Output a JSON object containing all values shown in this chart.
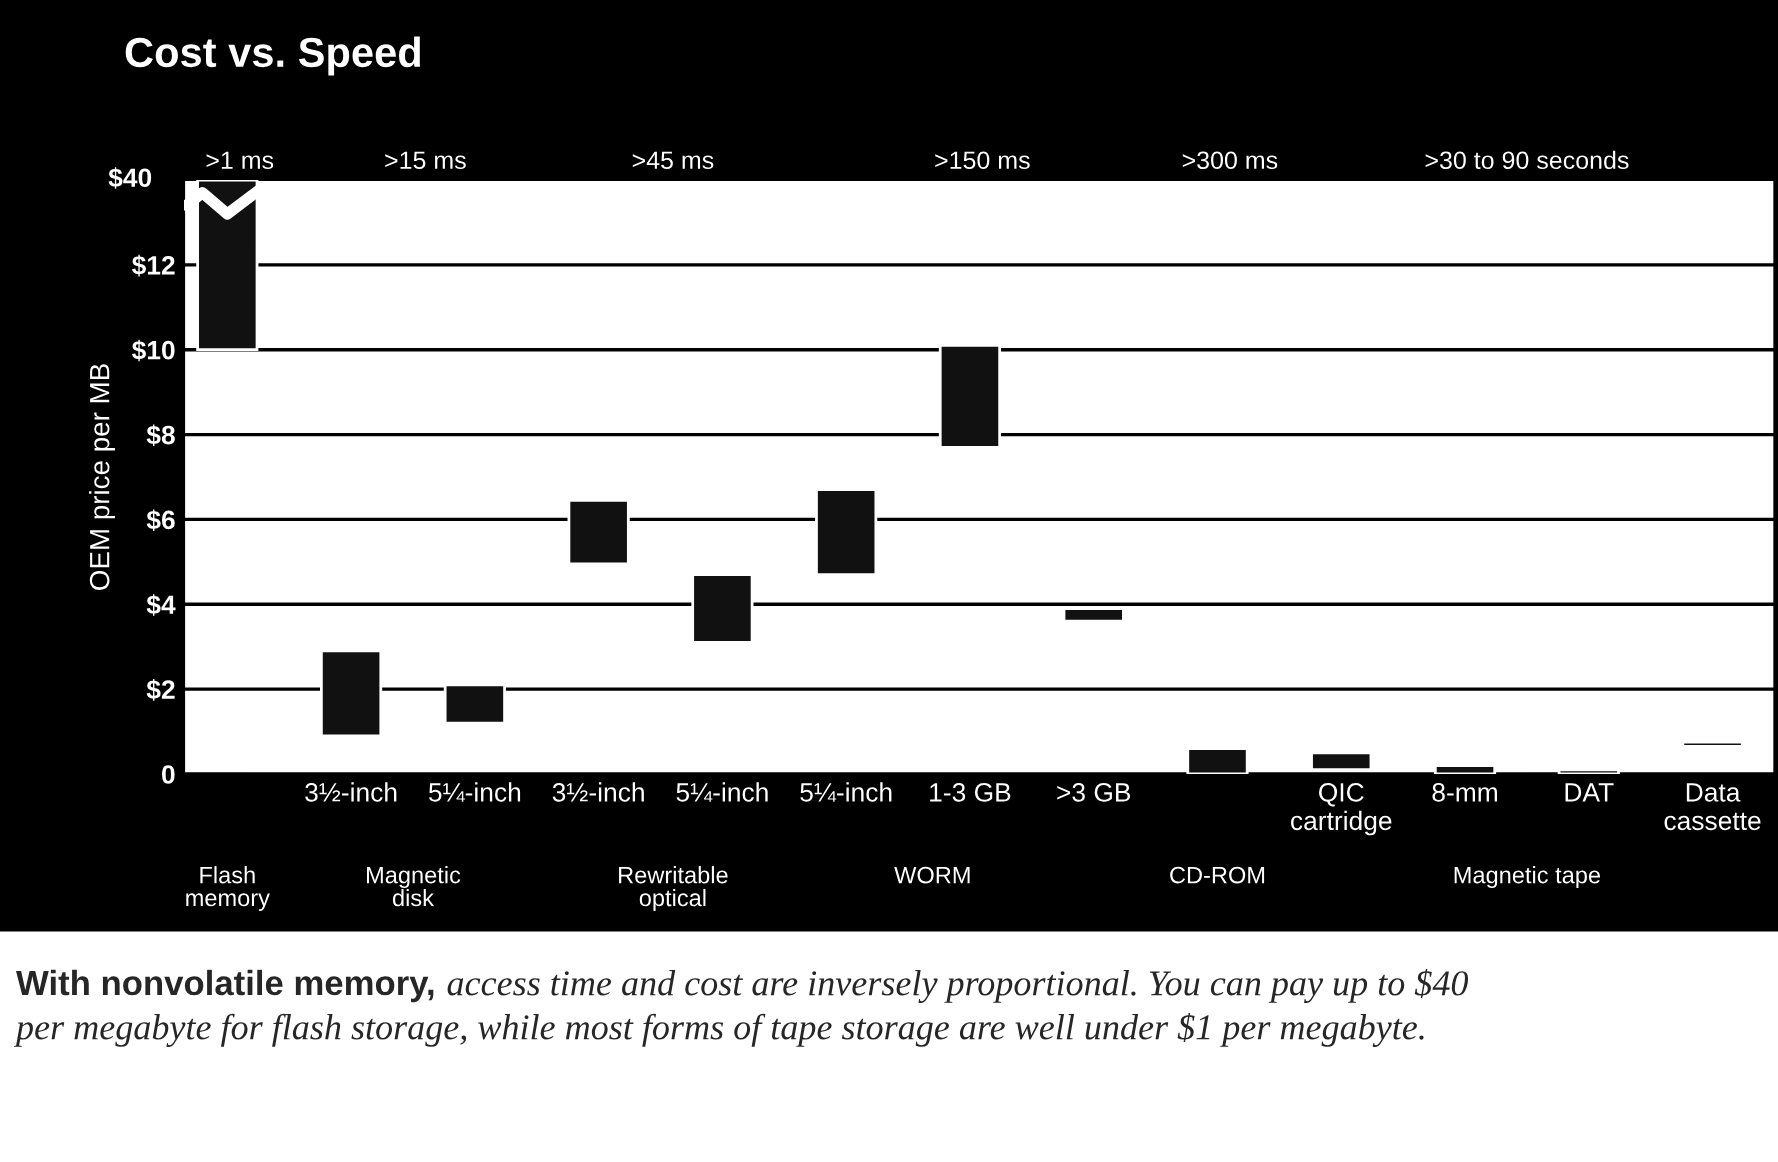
{
  "chart_data": {
    "type": "bar",
    "title": "Cost vs. Speed",
    "ylabel": "OEM price per MB",
    "categories": [
      null,
      "3½-inch",
      "5¼-inch",
      "3½-inch",
      "5¼-inch",
      "5¼-inch",
      "1-3 GB",
      ">3 GB",
      null,
      "QIC\ncartridge",
      "8-mm",
      "DAT",
      "Data\ncassette"
    ],
    "base": [
      10,
      0.9,
      1.2,
      4.95,
      3.1,
      4.7,
      7.7,
      3.6,
      0,
      0.1,
      0,
      0,
      0.65
    ],
    "values": [
      4,
      2,
      0.9,
      1.5,
      1.6,
      2,
      2.4,
      0.3,
      0.6,
      0.4,
      0.2,
      0.1,
      0.1
    ],
    "color": "#111111",
    "ylim": [
      0,
      14
    ],
    "yticks": [
      0,
      {
        "value": 2,
        "label": "$2"
      },
      {
        "value": 4,
        "label": "$4"
      },
      {
        "value": 6,
        "label": "$6"
      },
      {
        "value": 8,
        "label": "$8"
      },
      {
        "value": 10,
        "label": "$10"
      },
      {
        "value": 12,
        "label": "$12"
      }
    ],
    "grid": "y",
    "annotations": [
      ">1 ms",
      ">15 ms",
      ">45 ms",
      ">150 ms",
      ">300 ms",
      ">30 to 90 seconds",
      "$40",
      "Flash\nmemory",
      "Magnetic\ndisk",
      "Rewritable\noptical",
      "WORM",
      "CD-ROM",
      "Magnetic tape",
      "With nonvolatile memory,",
      "access time and cost are inversely proportional. You can pay up to $40",
      "per megabyte for flash storage, while most forms of tape storage are well under $1 per megabyte."
    ]
  }
}
